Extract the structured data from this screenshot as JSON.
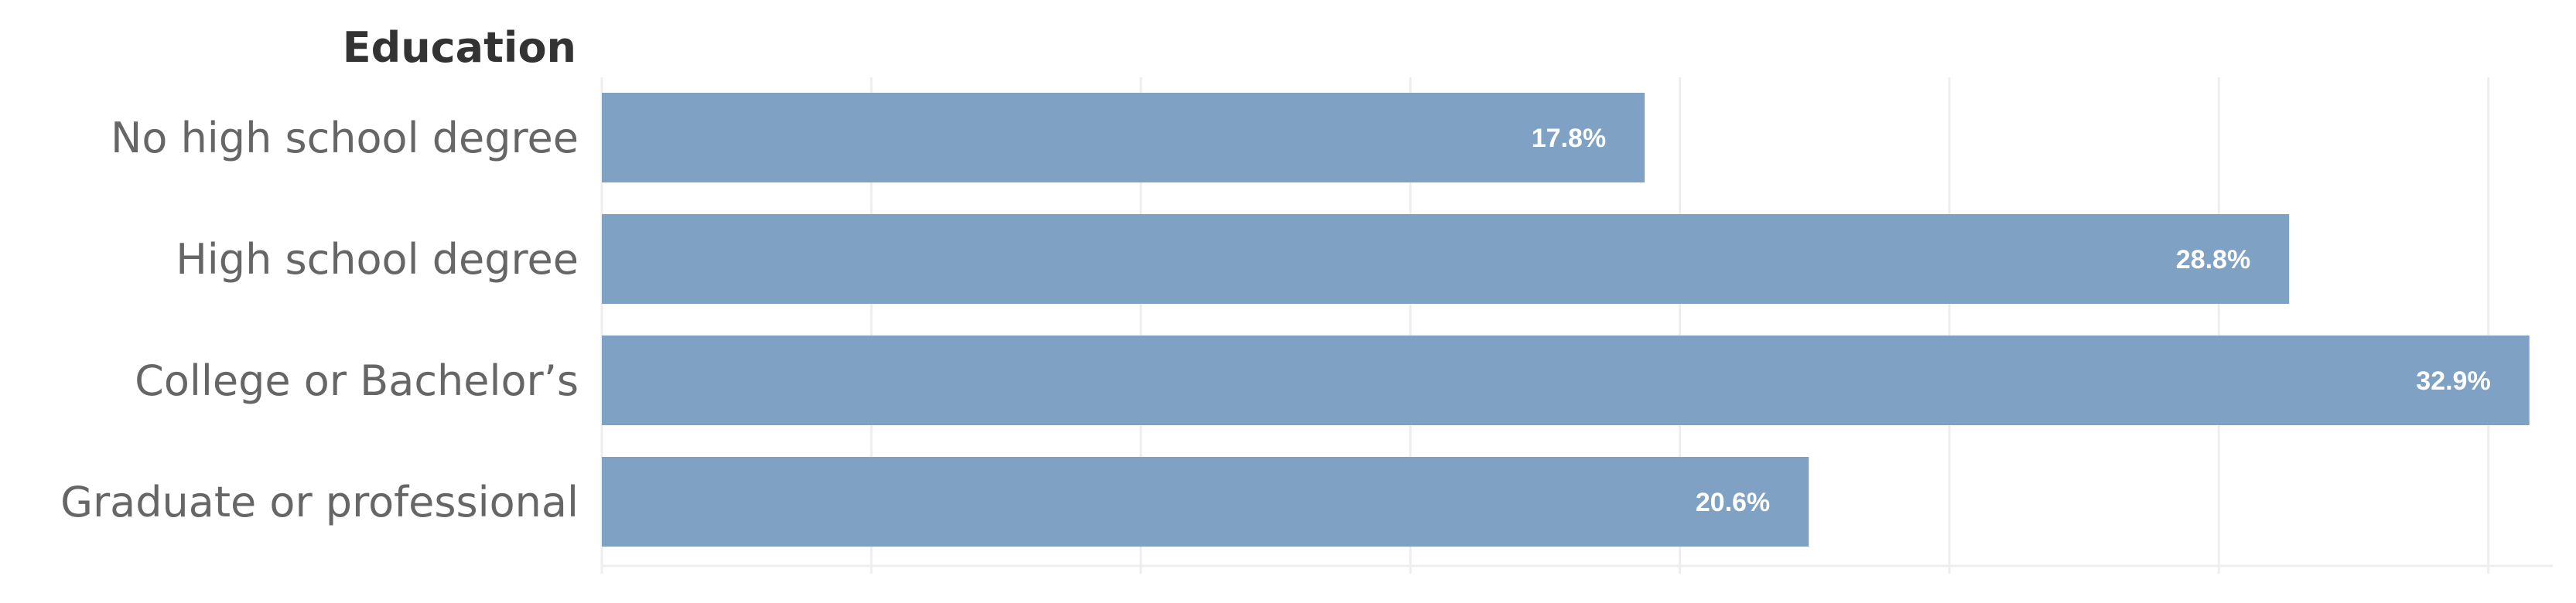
{
  "chart_data": {
    "type": "bar",
    "orientation": "horizontal",
    "category_axis_title": "Education",
    "categories": [
      "No high school degree",
      "High school degree",
      "College or Bachelor’s",
      "Graduate or professional"
    ],
    "values": [
      17.8,
      28.8,
      32.9,
      20.6
    ],
    "data_labels": [
      "17.8%",
      "28.8%",
      "32.9%",
      "20.6%"
    ],
    "value_unit": "%",
    "xlim": [
      0,
      33.3
    ],
    "gridline_interval": 4.6,
    "grid": true,
    "legend": "none",
    "bar_color": "#7fa1c4"
  }
}
